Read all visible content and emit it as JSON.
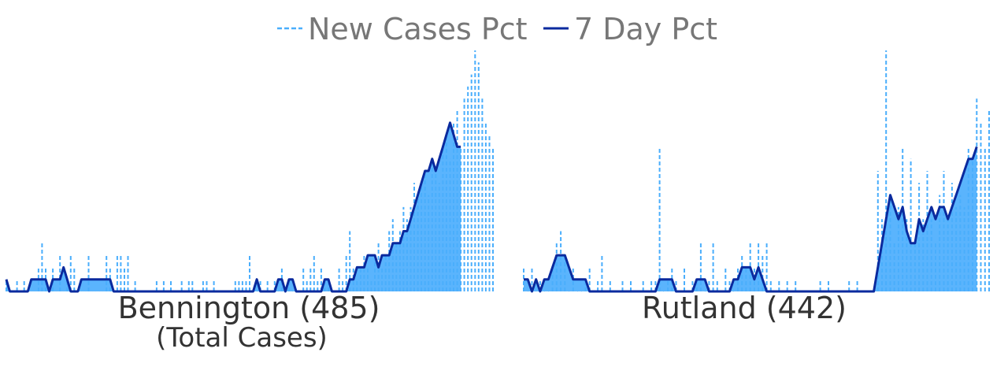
{
  "legend": {
    "new_cases_label": "New Cases Pct",
    "seven_day_label": "7 Day Pct"
  },
  "colors": {
    "new_cases": "#4aaefc",
    "seven_day": "#0a2a9e",
    "area": "#5ab4fd",
    "legend_text": "#777777",
    "title_text": "#333333"
  },
  "panels": [
    {
      "title": "Bennington (485)",
      "subtitle": "(Total Cases)"
    },
    {
      "title": "Rutland (442)",
      "subtitle": ""
    }
  ],
  "chart_data": [
    {
      "type": "area",
      "title": "Bennington (485)",
      "subtitle": "(Total Cases)",
      "axes_visible": false,
      "grid": false,
      "legend_placement": "top-center",
      "ylim": [
        0,
        1
      ],
      "series": [
        {
          "name": "New Cases Pct",
          "style": "dashed",
          "values": [
            0.05,
            0,
            0,
            0.05,
            0,
            0.05,
            0,
            0,
            0,
            0.1,
            0.2,
            0.1,
            0,
            0.1,
            0,
            0.15,
            0,
            0.05,
            0.15,
            0.1,
            0,
            0,
            0,
            0.15,
            0,
            0,
            0,
            0,
            0.15,
            0.1,
            0,
            0.15,
            0.15,
            0.1,
            0.15,
            0,
            0.05,
            0,
            0,
            0,
            0,
            0,
            0.05,
            0,
            0.05,
            0,
            0.05,
            0,
            0,
            0.05,
            0,
            0.05,
            0.05,
            0,
            0,
            0.05,
            0.05,
            0,
            0.05,
            0,
            0,
            0,
            0,
            0,
            0.05,
            0.05,
            0.05,
            0.05,
            0.15,
            0,
            0,
            0.05,
            0,
            0.05,
            0,
            0.05,
            0,
            0.1,
            0,
            0.05,
            0,
            0,
            0,
            0.1,
            0.05,
            0.1,
            0.15,
            0.05,
            0.1,
            0.05,
            0.05,
            0,
            0,
            0.1,
            0.05,
            0.15,
            0.25,
            0.1,
            0.05,
            0.1,
            0.15,
            0.1,
            0.05,
            0.15,
            0.2,
            0.1,
            0.15,
            0.25,
            0.3,
            0.2,
            0.25,
            0.35,
            0.3,
            0.35,
            0.45,
            0.4,
            0.45,
            0.5,
            0.4,
            0.55,
            0.5,
            0.45,
            0.6,
            0.65,
            0.55,
            0.7,
            0.75,
            0.6,
            0.8,
            0.85,
            0.9,
            1.0,
            0.95,
            0.8,
            0.7,
            0.65,
            0.6
          ]
        },
        {
          "name": "7 Day Pct",
          "style": "solid",
          "values": [
            0.05,
            0,
            0,
            0,
            0,
            0,
            0,
            0.05,
            0.05,
            0.05,
            0.05,
            0.05,
            0,
            0.05,
            0.05,
            0.05,
            0.1,
            0.05,
            0,
            0,
            0,
            0.05,
            0.05,
            0.05,
            0.05,
            0.05,
            0.05,
            0.05,
            0.05,
            0.05,
            0,
            0,
            0,
            0,
            0,
            0,
            0,
            0,
            0,
            0,
            0,
            0,
            0,
            0,
            0,
            0,
            0,
            0,
            0,
            0,
            0,
            0,
            0,
            0,
            0,
            0,
            0,
            0,
            0,
            0,
            0,
            0,
            0,
            0,
            0,
            0,
            0,
            0,
            0,
            0,
            0.05,
            0,
            0,
            0,
            0,
            0,
            0.05,
            0.05,
            0,
            0.05,
            0.05,
            0,
            0,
            0,
            0,
            0,
            0,
            0,
            0,
            0.05,
            0.05,
            0,
            0,
            0,
            0,
            0,
            0.05,
            0.05,
            0.1,
            0.1,
            0.1,
            0.15,
            0.15,
            0.15,
            0.1,
            0.15,
            0.15,
            0.15,
            0.2,
            0.2,
            0.2,
            0.25,
            0.25,
            0.3,
            0.35,
            0.4,
            0.45,
            0.5,
            0.5,
            0.55,
            0.5,
            0.55,
            0.6,
            0.65,
            0.7,
            0.65,
            0.6,
            0.6
          ]
        }
      ]
    },
    {
      "type": "area",
      "title": "Rutland (442)",
      "axes_visible": false,
      "grid": false,
      "legend_placement": "top-center",
      "ylim": [
        0,
        1
      ],
      "series": [
        {
          "name": "New Cases Pct",
          "style": "dashed",
          "values": [
            0.1,
            0,
            0.1,
            0,
            0.05,
            0,
            0,
            0.1,
            0.2,
            0.25,
            0.15,
            0,
            0.1,
            0,
            0,
            0.05,
            0.1,
            0,
            0.05,
            0.15,
            0,
            0.05,
            0,
            0,
            0.05,
            0,
            0.05,
            0,
            0,
            0.05,
            0,
            0.05,
            0.05,
            0.6,
            0,
            0.05,
            0.1,
            0.05,
            0,
            0.1,
            0,
            0.05,
            0.05,
            0.2,
            0,
            0.05,
            0.2,
            0.05,
            0,
            0.1,
            0.05,
            0,
            0.1,
            0.15,
            0.1,
            0.2,
            0.1,
            0.2,
            0.15,
            0.2,
            0.05,
            0,
            0.05,
            0,
            0.05,
            0,
            0.05,
            0,
            0,
            0,
            0,
            0,
            0.05,
            0,
            0.05,
            0,
            0,
            0,
            0,
            0.05,
            0,
            0.05,
            0,
            0,
            0,
            0,
            0.5,
            0.3,
            1.0,
            0.4,
            0.2,
            0.35,
            0.6,
            0.3,
            0.55,
            0.2,
            0.45,
            0.3,
            0.5,
            0.3,
            0.2,
            0.4,
            0.5,
            0.3,
            0.45,
            0.35,
            0.4,
            0.35,
            0.6,
            0.55,
            0.8,
            0.7,
            0.6,
            0.75
          ]
        },
        {
          "name": "7 Day Pct",
          "style": "solid",
          "values": [
            0.05,
            0.05,
            0,
            0.05,
            0,
            0.05,
            0.05,
            0.1,
            0.15,
            0.15,
            0.15,
            0.1,
            0.05,
            0.05,
            0.05,
            0.05,
            0,
            0,
            0,
            0,
            0,
            0,
            0,
            0,
            0,
            0,
            0,
            0,
            0,
            0,
            0,
            0,
            0,
            0.05,
            0.05,
            0.05,
            0.05,
            0,
            0,
            0,
            0,
            0,
            0.05,
            0.05,
            0.05,
            0,
            0,
            0,
            0,
            0,
            0,
            0.05,
            0.05,
            0.1,
            0.1,
            0.1,
            0.05,
            0.1,
            0.05,
            0,
            0,
            0,
            0,
            0,
            0,
            0,
            0,
            0,
            0,
            0,
            0,
            0,
            0,
            0,
            0,
            0,
            0,
            0,
            0,
            0,
            0,
            0,
            0,
            0,
            0,
            0,
            0.1,
            0.2,
            0.3,
            0.4,
            0.35,
            0.3,
            0.35,
            0.25,
            0.2,
            0.2,
            0.3,
            0.25,
            0.3,
            0.35,
            0.3,
            0.35,
            0.35,
            0.3,
            0.35,
            0.4,
            0.45,
            0.5,
            0.55,
            0.55,
            0.6
          ]
        }
      ]
    }
  ]
}
